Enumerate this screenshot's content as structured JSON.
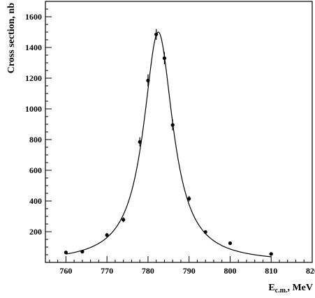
{
  "chart_data": {
    "type": "scatter",
    "xlabel": "E",
    "xlabel_subscript": "c.m.",
    "xlabel_unit": ", MeV",
    "ylabel": "Cross section, nb",
    "xlim": [
      755,
      820
    ],
    "ylim": [
      0,
      1700
    ],
    "x_ticks": [
      760,
      770,
      780,
      790,
      800,
      810,
      820
    ],
    "y_ticks": [
      200,
      400,
      600,
      800,
      1000,
      1200,
      1400,
      1600
    ],
    "grid": false,
    "legend": "none",
    "series": [
      {
        "points": [
          {
            "x": 760,
            "y": 65,
            "err": 10
          },
          {
            "x": 764,
            "y": 70,
            "err": 10
          },
          {
            "x": 770,
            "y": 178,
            "err": 14
          },
          {
            "x": 774,
            "y": 278,
            "err": 16
          },
          {
            "x": 778,
            "y": 785,
            "err": 30
          },
          {
            "x": 780,
            "y": 1185,
            "err": 40
          },
          {
            "x": 782,
            "y": 1485,
            "err": 35
          },
          {
            "x": 784,
            "y": 1330,
            "err": 40
          },
          {
            "x": 786,
            "y": 895,
            "err": 35
          },
          {
            "x": 790,
            "y": 415,
            "err": 18
          },
          {
            "x": 794,
            "y": 198,
            "err": 12
          },
          {
            "x": 800,
            "y": 125,
            "err": 10
          },
          {
            "x": 810,
            "y": 55,
            "err": 8
          }
        ]
      }
    ],
    "fit_curve": {
      "model": "lorentzian",
      "peak_x": 782.5,
      "peak_y": 1500,
      "width": 8.7,
      "baseline": 0,
      "x_range": [
        760,
        810
      ]
    },
    "colors": {
      "points": "#000000",
      "curve": "#000000",
      "axes": "#000000"
    }
  }
}
